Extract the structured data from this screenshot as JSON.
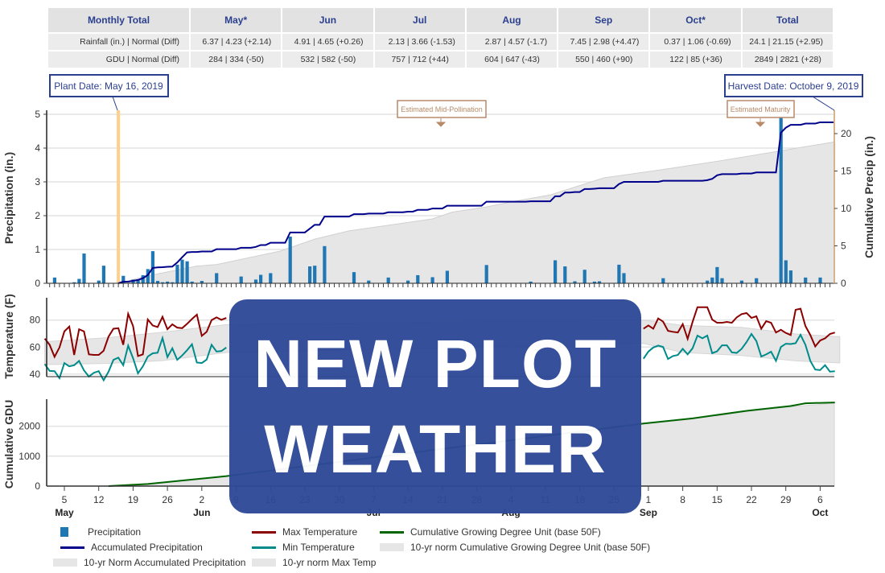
{
  "table": {
    "headers": [
      "Monthly Total",
      "May*",
      "Jun",
      "Jul",
      "Aug",
      "Sep",
      "Oct*",
      "Total"
    ],
    "rows": [
      [
        "Rainfall (in.) | Normal (Diff)",
        "6.37 | 4.23 (+2.14)",
        "4.91 | 4.65 (+0.26)",
        "2.13 | 3.66 (-1.53)",
        "2.87 | 4.57 (-1.7)",
        "7.45 | 2.98 (+4.47)",
        "0.37 | 1.06 (-0.69)",
        "24.1 | 21.15 (+2.95)"
      ],
      [
        "GDU | Normal (Diff)",
        "284 | 334  (-50)",
        "532 | 582  (-50)",
        "757 | 712  (+44)",
        "604 | 647  (-43)",
        "550 | 460  (+90)",
        "122 | 85  (+36)",
        "2849 | 2821  (+28)"
      ]
    ]
  },
  "annotations": {
    "plant": {
      "label": "Plant Date: May 16, 2019",
      "date": "2019-05-16"
    },
    "harvest": {
      "label": "Harvest Date: October 9, 2019",
      "date": "2019-10-09"
    },
    "pollination": {
      "label": "Estimated Mid-Pollination",
      "date": "2019-07-21"
    },
    "maturity": {
      "label": "Estimated Maturity",
      "date": "2019-09-24"
    }
  },
  "overlay": {
    "line1": "NEW PLOT",
    "line2": "WEATHER",
    "color": "#2e4997"
  },
  "colors": {
    "precip": "#1f77b4",
    "accum": "#00008b",
    "norm": "#e6e6e6",
    "max": "#8b0000",
    "min": "#008b8b",
    "gdu": "#006400",
    "plant": "#ffd08a",
    "note": "#b88a68",
    "title": "#2a3f8f"
  },
  "chart_data": [
    {
      "type": "bar",
      "ylabel": "Precipitation (in.)",
      "y2label": "Cumulative Precip (in.)",
      "ylim": [
        0,
        5
      ],
      "y2lim": [
        0,
        22.6
      ],
      "yticks": [
        "0",
        "1",
        "2",
        "3",
        "4",
        "5"
      ],
      "y2ticks": [
        "0",
        "5",
        "10",
        "15",
        "20"
      ],
      "xlim": [
        "2019-05-01",
        "2019-10-10"
      ],
      "grid": true,
      "precipitation": [
        [
          "2019-05-03",
          0.17
        ],
        [
          "2019-05-07",
          0.03
        ],
        [
          "2019-05-08",
          0.13
        ],
        [
          "2019-05-09",
          0.88
        ],
        [
          "2019-05-12",
          0.08
        ],
        [
          "2019-05-13",
          0.52
        ],
        [
          "2019-05-17",
          0.22
        ],
        [
          "2019-05-19",
          0.11
        ],
        [
          "2019-05-20",
          0.11
        ],
        [
          "2019-05-21",
          0.24
        ],
        [
          "2019-05-22",
          0.42
        ],
        [
          "2019-05-23",
          0.95
        ],
        [
          "2019-05-24",
          0.07
        ],
        [
          "2019-05-25",
          0.03
        ],
        [
          "2019-05-26",
          0.05
        ],
        [
          "2019-05-27",
          0.03
        ],
        [
          "2019-05-28",
          0.55
        ],
        [
          "2019-05-29",
          0.7
        ],
        [
          "2019-05-30",
          0.65
        ],
        [
          "2019-05-31",
          0.05
        ],
        [
          "2019-06-02",
          0.07
        ],
        [
          "2019-06-05",
          0.3
        ],
        [
          "2019-06-10",
          0.2
        ],
        [
          "2019-06-13",
          0.11
        ],
        [
          "2019-06-14",
          0.25
        ],
        [
          "2019-06-16",
          0.3
        ],
        [
          "2019-06-20",
          1.38
        ],
        [
          "2019-06-24",
          0.5
        ],
        [
          "2019-06-25",
          0.52
        ],
        [
          "2019-06-27",
          1.1
        ],
        [
          "2019-07-03",
          0.33
        ],
        [
          "2019-07-06",
          0.08
        ],
        [
          "2019-07-10",
          0.17
        ],
        [
          "2019-07-14",
          0.08
        ],
        [
          "2019-07-16",
          0.24
        ],
        [
          "2019-07-19",
          0.18
        ],
        [
          "2019-07-22",
          0.37
        ],
        [
          "2019-07-30",
          0.54
        ],
        [
          "2019-08-08",
          0.05
        ],
        [
          "2019-08-13",
          0.68
        ],
        [
          "2019-08-15",
          0.5
        ],
        [
          "2019-08-17",
          0.06
        ],
        [
          "2019-08-19",
          0.4
        ],
        [
          "2019-08-21",
          0.05
        ],
        [
          "2019-08-22",
          0.06
        ],
        [
          "2019-08-26",
          0.55
        ],
        [
          "2019-08-27",
          0.3
        ],
        [
          "2019-09-04",
          0.15
        ],
        [
          "2019-09-13",
          0.08
        ],
        [
          "2019-09-14",
          0.17
        ],
        [
          "2019-09-15",
          0.48
        ],
        [
          "2019-09-16",
          0.15
        ],
        [
          "2019-09-20",
          0.08
        ],
        [
          "2019-09-23",
          0.15
        ],
        [
          "2019-09-28",
          5.3
        ],
        [
          "2019-09-29",
          0.68
        ],
        [
          "2019-09-30",
          0.38
        ],
        [
          "2019-10-03",
          0.17
        ],
        [
          "2019-10-06",
          0.17
        ]
      ],
      "norm_accumulated": [
        [
          "2019-05-16",
          0
        ],
        [
          "2019-05-22",
          1.0
        ],
        [
          "2019-06-01",
          2.3
        ],
        [
          "2019-06-05",
          2.5
        ],
        [
          "2019-06-18",
          4.3
        ],
        [
          "2019-06-25",
          5.9
        ],
        [
          "2019-07-02",
          7.0
        ],
        [
          "2019-07-19",
          8.6
        ],
        [
          "2019-07-23",
          9.5
        ],
        [
          "2019-07-30",
          10.2
        ],
        [
          "2019-08-05",
          11.0
        ],
        [
          "2019-08-12",
          11.8
        ],
        [
          "2019-08-23",
          14.1
        ],
        [
          "2019-09-04",
          15.2
        ],
        [
          "2019-09-16",
          16.4
        ],
        [
          "2019-09-28",
          17.7
        ],
        [
          "2019-10-09",
          18.9
        ]
      ]
    },
    {
      "type": "line",
      "ylabel": "Temperature (F)",
      "yticks": [
        "40",
        "60",
        "80"
      ],
      "max_temp": [
        {
          "start": "2019-05-01",
          "values": [
            66.3,
            61.7,
            52.8,
            59.7,
            71.6,
            75.2,
            54.2,
            73.2,
            71.6,
            54.6,
            54.2,
            54.2,
            57.3,
            67.7,
            73.6,
            74,
            61.7,
            84.6,
            75.6,
            53.4,
            54.6,
            80.4,
            76,
            74.8,
            82.4,
            73.2,
            76.8,
            74.4,
            74,
            77.2,
            80.8,
            84,
            68.3,
            71.3,
            80,
            82,
            80.2,
            81.6
          ]
        },
        {
          "start": "2019-08-31",
          "values": [
            73.6,
            76,
            73.6,
            81.2,
            78.8,
            72,
            71.3,
            70.8,
            77,
            66.1,
            78.6,
            89.5,
            89.5,
            89.5,
            80.4,
            78,
            78,
            78.6,
            78,
            82,
            84.4,
            85.2,
            81.6,
            82.8,
            73.6,
            79.2,
            78,
            70.8,
            72.8,
            70.5,
            68.9,
            87.6,
            88.4,
            75.6,
            68.9,
            60.5,
            64.9,
            66.5,
            69.7,
            70.8
          ]
        }
      ],
      "min_temp": [
        {
          "start": "2019-05-01",
          "values": [
            47.4,
            42.4,
            42.2,
            37,
            48.2,
            45.8,
            46.6,
            49.8,
            42.8,
            38.2,
            41,
            42.2,
            35.5,
            41.8,
            50.6,
            52.2,
            46.6,
            61.1,
            51.8,
            40.6,
            45.8,
            53,
            55.4,
            55.8,
            66.7,
            52.6,
            59.1,
            50.6,
            53.8,
            57.7,
            62.1,
            48.6,
            48.2,
            50.8,
            61.7,
            56.7,
            57.1,
            59.7
          ]
        },
        {
          "start": "2019-08-31",
          "values": [
            51.4,
            56.7,
            59.7,
            61.1,
            60.1,
            51.2,
            53.4,
            54.2,
            58.7,
            54.6,
            59.1,
            68.5,
            66.5,
            68.5,
            55.5,
            56.9,
            61.3,
            61.3,
            56.1,
            55.7,
            58.7,
            63.7,
            69.7,
            64.5,
            53,
            54.6,
            56.6,
            49.8,
            60.1,
            62.5,
            62.3,
            62.9,
            69.1,
            61.7,
            49.8,
            43.4,
            43,
            46.6,
            41.8,
            42.2
          ]
        }
      ],
      "norm_band": [
        [
          "2019-05-01",
          47,
          64
        ],
        [
          "2019-05-14",
          48,
          67
        ],
        [
          "2019-05-25",
          50,
          71
        ],
        [
          "2019-06-07",
          56,
          76.6
        ],
        [
          "2019-08-31",
          62.7,
          80
        ],
        [
          "2019-09-08",
          56,
          76
        ],
        [
          "2019-09-20",
          53.8,
          74.6
        ],
        [
          "2019-10-01",
          49.8,
          69.7
        ],
        [
          "2019-10-10",
          48.3,
          67.7
        ]
      ]
    },
    {
      "type": "area",
      "ylabel": "Cumulative GDU",
      "yticks": [
        "0",
        "1000",
        "2000"
      ],
      "gdu": [
        [
          "2019-05-14",
          0
        ],
        [
          "2019-05-22",
          72
        ],
        [
          "2019-06-07",
          333
        ],
        [
          "2019-08-31",
          2090
        ],
        [
          "2019-09-10",
          2261
        ],
        [
          "2019-09-21",
          2514
        ],
        [
          "2019-09-30",
          2676
        ],
        [
          "2019-10-03",
          2766
        ],
        [
          "2019-10-09",
          2793
        ]
      ],
      "norm_gdu": [
        [
          "2019-05-14",
          0
        ],
        [
          "2019-05-22",
          60
        ],
        [
          "2019-06-07",
          315
        ],
        [
          "2019-08-31",
          2075
        ],
        [
          "2019-09-10",
          2240
        ],
        [
          "2019-09-21",
          2490
        ],
        [
          "2019-09-30",
          2650
        ],
        [
          "2019-10-09",
          2770
        ]
      ]
    }
  ],
  "x_ticks": [
    {
      "date": "2019-05-05",
      "label": "5",
      "month": "May"
    },
    {
      "date": "2019-05-12",
      "label": "12"
    },
    {
      "date": "2019-05-19",
      "label": "19"
    },
    {
      "date": "2019-05-26",
      "label": "26"
    },
    {
      "date": "2019-06-02",
      "label": "2",
      "month": "Jun"
    },
    {
      "date": "2019-06-09",
      "label": "9"
    },
    {
      "date": "2019-06-16",
      "label": "16"
    },
    {
      "date": "2019-06-23",
      "label": "23"
    },
    {
      "date": "2019-06-30",
      "label": "30"
    },
    {
      "date": "2019-07-07",
      "label": "7",
      "month": "Jul"
    },
    {
      "date": "2019-07-14",
      "label": "14"
    },
    {
      "date": "2019-07-21",
      "label": "21"
    },
    {
      "date": "2019-07-28",
      "label": "28"
    },
    {
      "date": "2019-08-04",
      "label": "4",
      "month": "Aug"
    },
    {
      "date": "2019-08-11",
      "label": "11"
    },
    {
      "date": "2019-08-18",
      "label": "18"
    },
    {
      "date": "2019-08-25",
      "label": "25"
    },
    {
      "date": "2019-09-01",
      "label": "1",
      "month": "Sep"
    },
    {
      "date": "2019-09-08",
      "label": "8"
    },
    {
      "date": "2019-09-15",
      "label": "15"
    },
    {
      "date": "2019-09-22",
      "label": "22"
    },
    {
      "date": "2019-09-29",
      "label": "29"
    },
    {
      "date": "2019-10-06",
      "label": "6",
      "month": "Oct"
    }
  ],
  "legend": [
    {
      "label": "Precipitation",
      "kind": "box",
      "color": "#1f77b4"
    },
    {
      "label": "Accumulated Precipitation",
      "kind": "line",
      "color": "#00008b"
    },
    {
      "label": "10-yr Norm Accumulated Precipitation",
      "kind": "band",
      "color": "#e6e6e6"
    },
    {
      "label": "Max Temperature",
      "kind": "line",
      "color": "#8b0000"
    },
    {
      "label": "Min Temperature",
      "kind": "line",
      "color": "#008b8b"
    },
    {
      "label": "10-yr norm Max Temp",
      "kind": "band",
      "color": "#e6e6e6"
    },
    {
      "label": "Cumulative Growing Degree Unit (base 50F)",
      "kind": "line",
      "color": "#006400"
    },
    {
      "label": "10-yr norm Cumulative Growing Degree Unit (base 50F)",
      "kind": "band",
      "color": "#e6e6e6"
    }
  ]
}
